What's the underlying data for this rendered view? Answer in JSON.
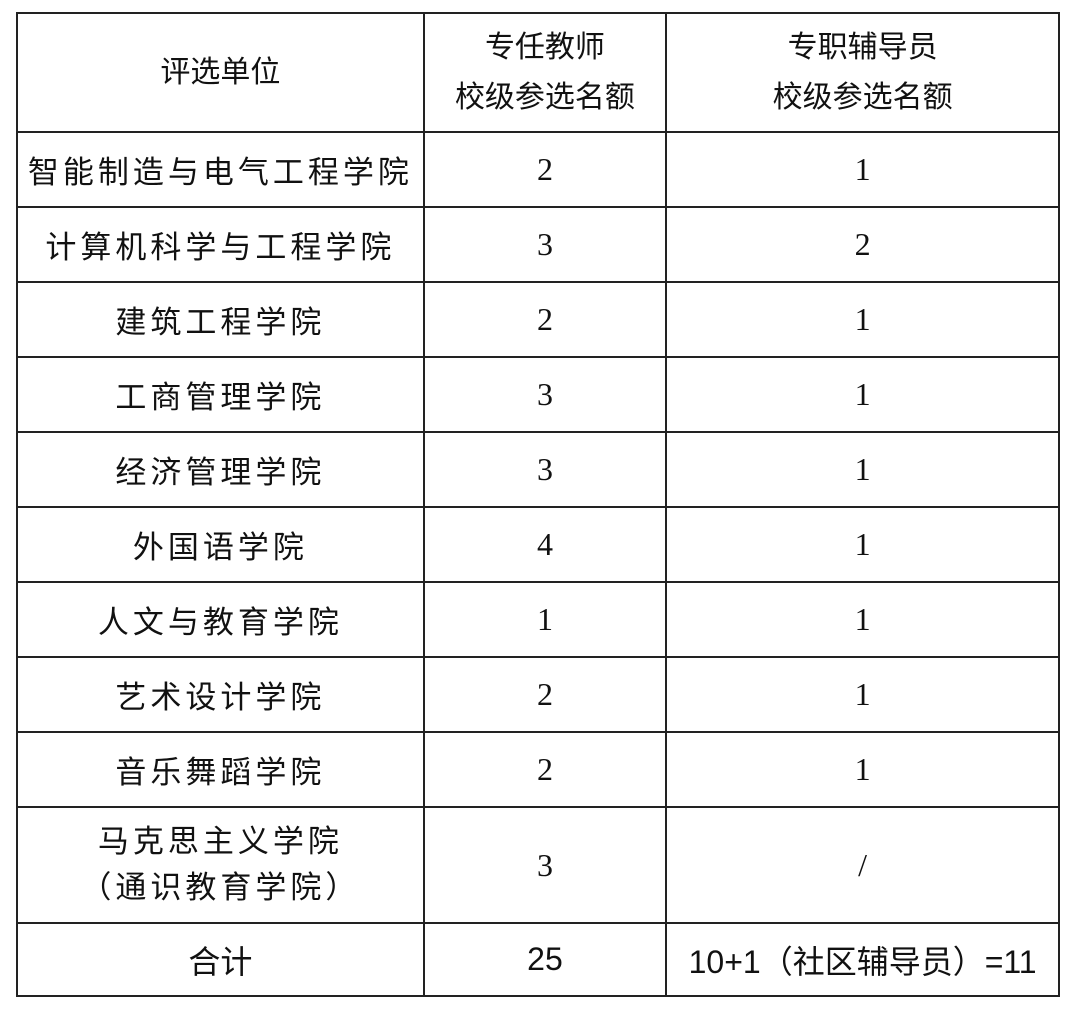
{
  "headers": {
    "unit": "评选单位",
    "teacher_line1": "专任教师",
    "teacher_line2": "校级参选名额",
    "counselor_line1": "专职辅导员",
    "counselor_line2": "校级参选名额"
  },
  "rows": [
    {
      "unit": "智能制造与电气工程学院",
      "teacher": "2",
      "counselor": "1"
    },
    {
      "unit": "计算机科学与工程学院",
      "teacher": "3",
      "counselor": "2"
    },
    {
      "unit": "建筑工程学院",
      "teacher": "2",
      "counselor": "1"
    },
    {
      "unit": "工商管理学院",
      "teacher": "3",
      "counselor": "1"
    },
    {
      "unit": "经济管理学院",
      "teacher": "3",
      "counselor": "1"
    },
    {
      "unit": "外国语学院",
      "teacher": "4",
      "counselor": "1"
    },
    {
      "unit": "人文与教育学院",
      "teacher": "1",
      "counselor": "1"
    },
    {
      "unit": "艺术设计学院",
      "teacher": "2",
      "counselor": "1"
    },
    {
      "unit": "音乐舞蹈学院",
      "teacher": "2",
      "counselor": "1"
    },
    {
      "unit": "马克思主义学院",
      "unit_line2": "（通识教育学院）",
      "teacher": "3",
      "counselor": "/"
    }
  ],
  "total": {
    "label": "合计",
    "teacher": "25",
    "counselor": "10+1（社区辅导员）=11"
  }
}
